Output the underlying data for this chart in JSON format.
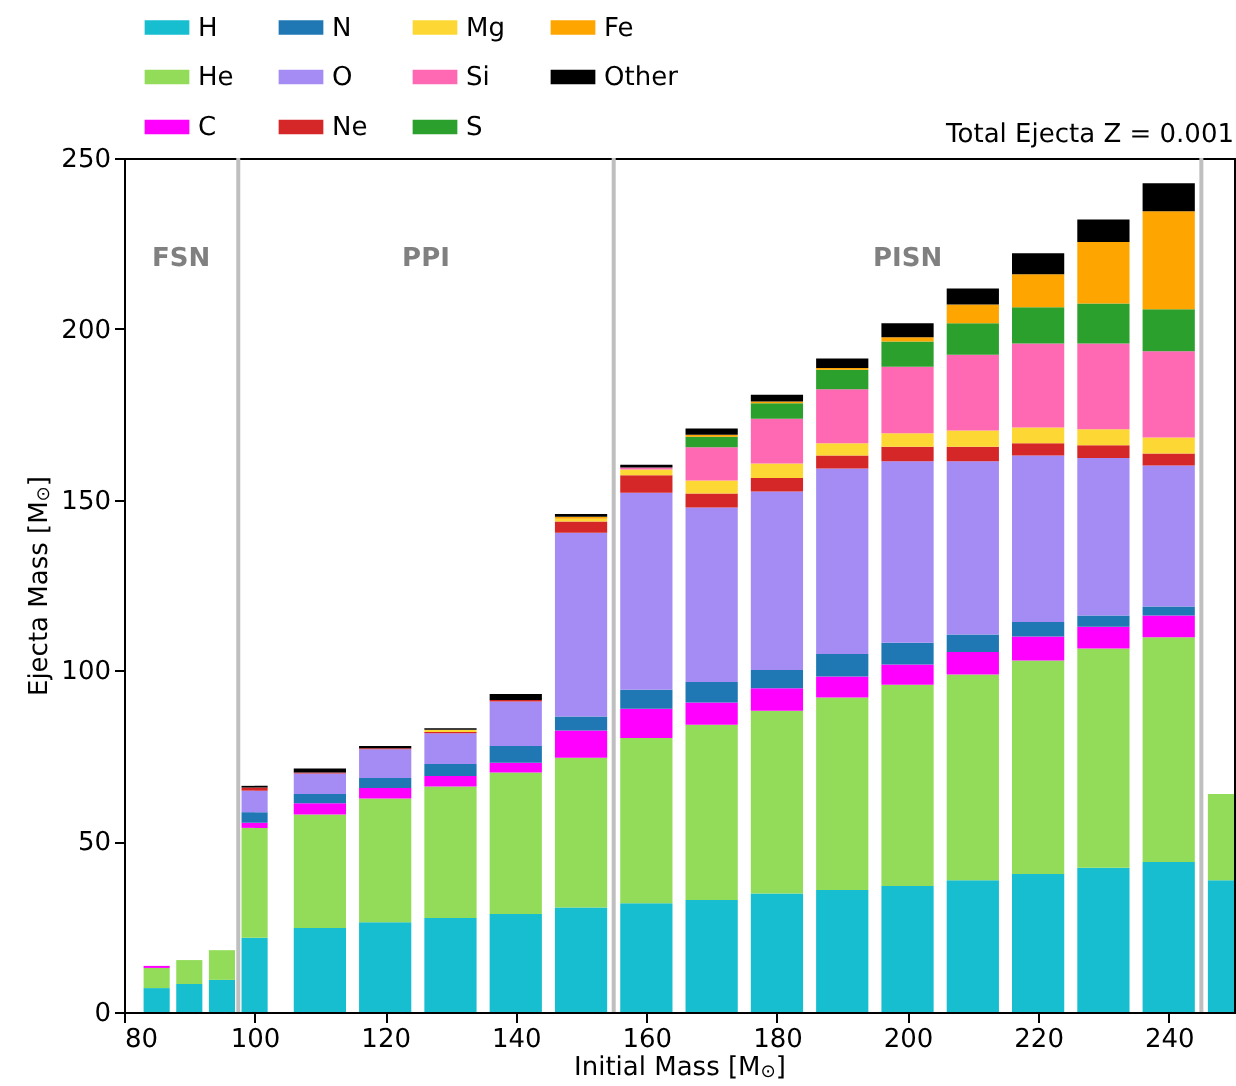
{
  "chart_data": {
    "type": "bar",
    "stacked": true,
    "title": "Total Ejecta Z = 0.001",
    "xlabel": "Initial Mass [M$_{⊙}$]",
    "ylabel": "Ejecta Mass [M$_{⊙}$]",
    "x": [
      85,
      90,
      95,
      100,
      110,
      120,
      130,
      140,
      150,
      160,
      170,
      180,
      190,
      200,
      210,
      220,
      230,
      240,
      250
    ],
    "series": [
      {
        "name": "H",
        "color": "#17becf",
        "values": [
          7.0,
          8.2,
          9.4,
          21.7,
          24.6,
          26.3,
          27.5,
          28.7,
          30.6,
          31.8,
          32.8,
          34.7,
          35.7,
          36.9,
          38.6,
          40.4,
          42.2,
          43.9,
          38.6
        ]
      },
      {
        "name": "He",
        "color": "#92dc5a",
        "values": [
          5.9,
          7.0,
          8.7,
          32.2,
          33.2,
          36.2,
          38.5,
          41.4,
          43.8,
          48.4,
          51.3,
          53.5,
          56.4,
          58.9,
          60.2,
          62.5,
          64.2,
          65.8,
          25.2
        ]
      },
      {
        "name": "C",
        "color": "#ff00ff",
        "values": [
          0.6,
          null,
          null,
          1.5,
          3.3,
          3.1,
          3.1,
          2.9,
          8.0,
          8.6,
          6.5,
          6.6,
          6.1,
          5.9,
          6.6,
          7.0,
          6.4,
          6.4,
          null
        ]
      },
      {
        "name": "N",
        "color": "#1f77b4",
        "values": [
          null,
          null,
          null,
          3.1,
          2.7,
          2.9,
          3.5,
          4.9,
          4.1,
          5.5,
          6.0,
          5.3,
          6.6,
          6.4,
          5.1,
          4.3,
          3.3,
          2.6,
          null
        ]
      },
      {
        "name": "O",
        "color": "#a48cf4",
        "values": [
          null,
          null,
          null,
          6.3,
          6.0,
          8.4,
          9.0,
          13.0,
          53.8,
          57.7,
          51.1,
          52.3,
          54.3,
          53.1,
          50.7,
          48.7,
          46.1,
          41.3,
          null
        ]
      },
      {
        "name": "Ne",
        "color": "#d62728",
        "values": [
          null,
          null,
          null,
          0.9,
          0.3,
          0.3,
          0.4,
          0.4,
          3.3,
          5.1,
          4.1,
          3.9,
          3.8,
          4.3,
          4.3,
          3.6,
          3.7,
          3.5,
          null
        ]
      },
      {
        "name": "Mg",
        "color": "#fdd835",
        "values": [
          null,
          null,
          null,
          null,
          null,
          null,
          0.6,
          null,
          0.8,
          1.7,
          3.8,
          4.3,
          3.6,
          3.9,
          4.7,
          4.6,
          4.7,
          4.7,
          null
        ]
      },
      {
        "name": "Si",
        "color": "#ff69b4",
        "values": [
          null,
          null,
          null,
          null,
          null,
          null,
          null,
          null,
          null,
          0.6,
          9.7,
          13.1,
          15.8,
          19.5,
          22.2,
          24.6,
          25.1,
          25.2,
          null
        ]
      },
      {
        "name": "S",
        "color": "#2ca02c",
        "values": [
          null,
          null,
          null,
          null,
          null,
          null,
          null,
          null,
          null,
          null,
          3.1,
          4.5,
          5.7,
          7.4,
          9.2,
          10.6,
          11.7,
          12.3,
          null
        ]
      },
      {
        "name": "Fe",
        "color": "#ffa500",
        "values": [
          null,
          null,
          null,
          null,
          null,
          null,
          null,
          null,
          0.6,
          null,
          0.6,
          0.5,
          0.5,
          1.2,
          5.5,
          9.7,
          18.0,
          28.7,
          null
        ]
      },
      {
        "name": "Other",
        "color": "#000000",
        "values": [
          null,
          null,
          null,
          0.5,
          1.2,
          0.7,
          0.5,
          1.8,
          0.8,
          0.8,
          1.8,
          2.0,
          2.8,
          4.1,
          4.7,
          6.1,
          6.6,
          8.2,
          null
        ]
      }
    ],
    "xlim": [
      80,
      250
    ],
    "xticks": [
      80,
      100,
      120,
      140,
      160,
      180,
      200,
      220,
      240
    ],
    "ylim": [
      0,
      250
    ],
    "yticks": [
      0,
      50,
      100,
      150,
      200,
      250
    ],
    "grid": false,
    "legend": "top left",
    "ref_lines": [
      {
        "axis": "x",
        "value": 97.5,
        "color": "#bfbfbf"
      },
      {
        "axis": "x",
        "value": 155,
        "color": "#bfbfbf"
      },
      {
        "axis": "x",
        "value": 245,
        "color": "#bfbfbf"
      }
    ],
    "annotations": [
      "FSN",
      "PPI",
      "PISN"
    ]
  }
}
